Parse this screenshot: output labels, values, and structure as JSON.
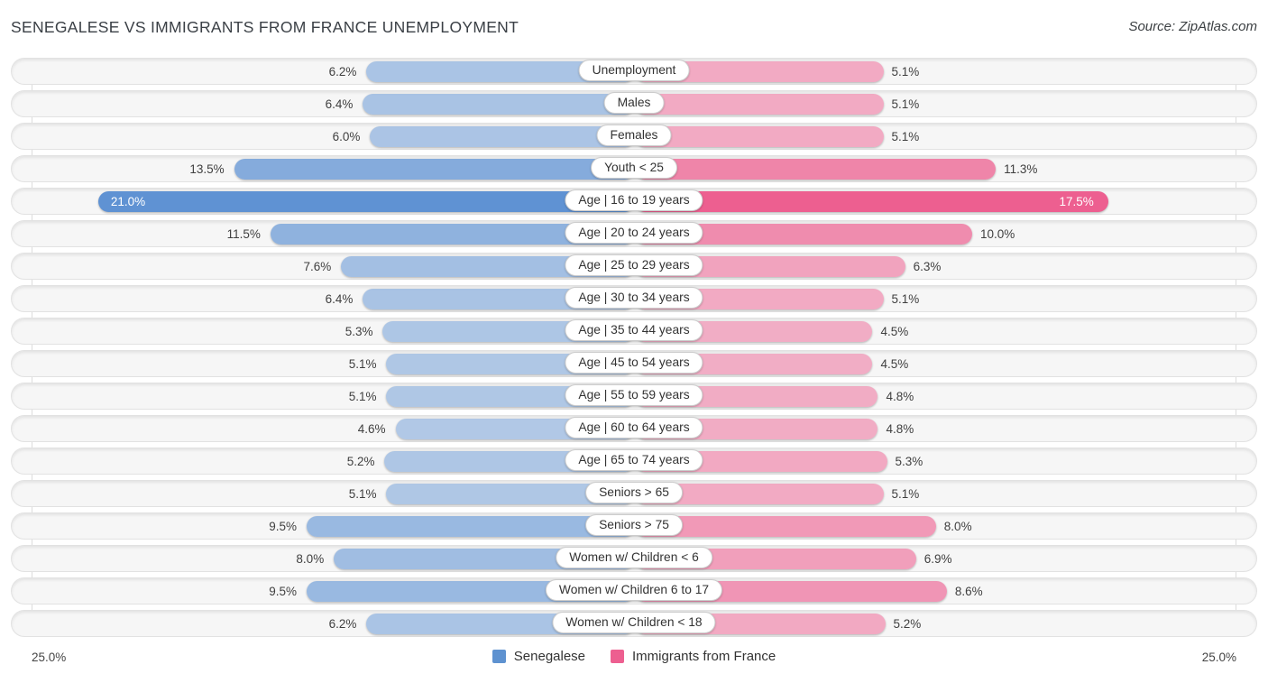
{
  "title": "SENEGALESE VS IMMIGRANTS FROM FRANCE UNEMPLOYMENT",
  "source": "Source: ZipAtlas.com",
  "axis": {
    "left_max_label": "25.0%",
    "right_max_label": "25.0%",
    "max_value": 25.0
  },
  "legend": [
    {
      "label": "Senegalese",
      "color": "#5e92d0"
    },
    {
      "label": "Immigrants from France",
      "color": "#ed5f90"
    }
  ],
  "colors": {
    "senegalese_base_rgb": [
      95,
      146,
      211
    ],
    "immigrants_base_rgb": [
      237,
      95,
      144
    ],
    "min_alpha": 0.3
  },
  "chart_data": {
    "type": "bar",
    "orientation": "diverging-horizontal",
    "title": "SENEGALESE VS IMMIGRANTS FROM FRANCE UNEMPLOYMENT",
    "value_suffix": "%",
    "xlim": [
      0,
      25
    ],
    "axis_tick_labels": [
      "25.0%",
      "25.0%"
    ],
    "legend_position": "bottom-center",
    "grid": "vertical-max-only",
    "categories": [
      "Unemployment",
      "Males",
      "Females",
      "Youth < 25",
      "Age | 16 to 19 years",
      "Age | 20 to 24 years",
      "Age | 25 to 29 years",
      "Age | 30 to 34 years",
      "Age | 35 to 44 years",
      "Age | 45 to 54 years",
      "Age | 55 to 59 years",
      "Age | 60 to 64 years",
      "Age | 65 to 74 years",
      "Seniors > 65",
      "Seniors > 75",
      "Women w/ Children < 6",
      "Women w/ Children 6 to 17",
      "Women w/ Children < 18"
    ],
    "series": [
      {
        "name": "Senegalese",
        "side": "left",
        "values": [
          6.2,
          6.4,
          6.0,
          13.5,
          21.0,
          11.5,
          7.6,
          6.4,
          5.3,
          5.1,
          5.1,
          4.6,
          5.2,
          5.1,
          9.5,
          8.0,
          9.5,
          6.2
        ]
      },
      {
        "name": "Immigrants from France",
        "side": "right",
        "values": [
          5.1,
          5.1,
          5.1,
          11.3,
          17.5,
          10.0,
          6.3,
          5.1,
          4.5,
          4.5,
          4.8,
          4.8,
          5.3,
          5.1,
          8.0,
          6.9,
          8.6,
          5.2
        ]
      }
    ]
  }
}
